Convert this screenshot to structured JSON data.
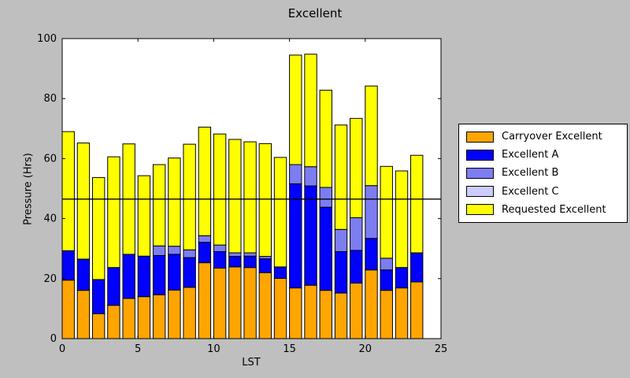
{
  "figure": {
    "background": "#BFBFBF",
    "plot_background": "#FFFFFF",
    "axes_color": "#000000"
  },
  "chart_data": {
    "type": "bar",
    "stacked": true,
    "title": "Excellent",
    "xlabel": "LST",
    "ylabel": "Pressure (Hrs)",
    "xlim": [
      0,
      25
    ],
    "ylim": [
      0,
      100
    ],
    "xticks": [
      0,
      5,
      10,
      15,
      20,
      25
    ],
    "yticks": [
      0,
      20,
      40,
      60,
      80,
      100
    ],
    "grid": false,
    "bar_width": 0.8,
    "legend_position": "right-outside",
    "categories": [
      0,
      1,
      2,
      3,
      4,
      5,
      6,
      7,
      8,
      9,
      10,
      11,
      12,
      13,
      14,
      15,
      16,
      17,
      18,
      19,
      20,
      21,
      22,
      23
    ],
    "series": [
      {
        "name": "Carryover Excellent",
        "color": "#FFA500",
        "values": [
          19.5,
          16.1,
          8.3,
          11.1,
          13.4,
          14.0,
          14.6,
          16.2,
          17.1,
          25.3,
          23.5,
          23.9,
          23.7,
          22.0,
          20.1,
          16.9,
          17.8,
          16.1,
          15.2,
          18.5,
          22.9,
          16.1,
          16.9,
          18.9
        ]
      },
      {
        "name": "Excellent A",
        "color": "#0000FF",
        "values": [
          9.8,
          10.4,
          11.4,
          12.6,
          14.7,
          13.5,
          13.1,
          11.9,
          9.9,
          6.8,
          5.5,
          3.5,
          3.8,
          4.6,
          3.8,
          34.7,
          33.1,
          27.7,
          13.8,
          10.9,
          10.5,
          6.8,
          6.8,
          9.7
        ]
      },
      {
        "name": "Excellent B",
        "color": "#7D7DF2",
        "values": [
          0,
          0,
          0,
          0,
          0,
          0,
          3.2,
          2.7,
          2.6,
          2.2,
          2.2,
          1.2,
          1.1,
          0.8,
          0,
          6.4,
          6.4,
          6.6,
          7.4,
          10.9,
          17.6,
          3.9,
          0,
          0
        ]
      },
      {
        "name": "Excellent C",
        "color": "#CCCCFF",
        "values": [
          0,
          0,
          0,
          0,
          0,
          0,
          0,
          0,
          0,
          0,
          0,
          0,
          0,
          0,
          0,
          0,
          0,
          0,
          0,
          0,
          0,
          0,
          0,
          0
        ]
      },
      {
        "name": "Requested Excellent",
        "color": "#FFFF00",
        "values": [
          39.7,
          38.7,
          34.0,
          36.9,
          36.8,
          26.8,
          27.1,
          29.4,
          35.2,
          36.2,
          37.0,
          37.8,
          37.0,
          37.6,
          36.5,
          36.5,
          37.5,
          32.4,
          34.8,
          33.1,
          33.2,
          30.6,
          32.2,
          32.5
        ]
      }
    ],
    "hline": {
      "y": 46.5,
      "color": "#000000"
    }
  }
}
